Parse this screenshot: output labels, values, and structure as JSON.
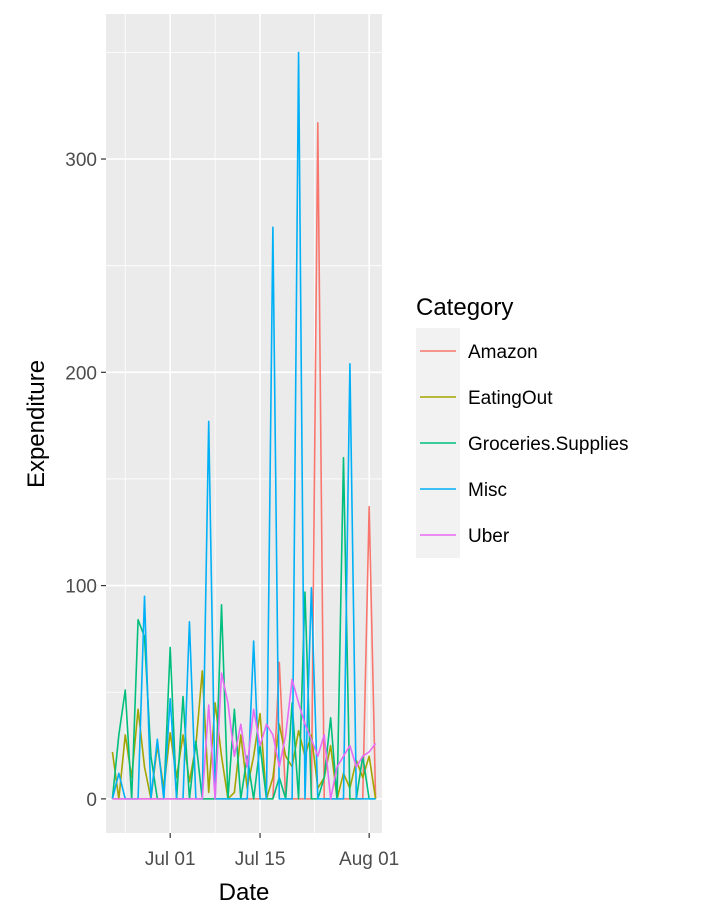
{
  "chart_data": {
    "type": "line",
    "xlabel": "Date",
    "ylabel": "Expenditure",
    "x_ticks": [
      {
        "date": "2017-07-01",
        "label": "Jul 01"
      },
      {
        "date": "2017-07-15",
        "label": "Jul 15"
      },
      {
        "date": "2017-08-01",
        "label": "Aug 01"
      }
    ],
    "y_ticks": [
      0,
      100,
      200,
      300
    ],
    "xlim": [
      "2017-06-21",
      "2017-08-03"
    ],
    "ylim": [
      -16,
      368
    ],
    "grid": true,
    "legend": {
      "title": "Category",
      "position": "right"
    },
    "series": [
      {
        "name": "Amazon",
        "color": "#F8766D",
        "points": [
          [
            "2017-06-22",
            0
          ],
          [
            "2017-06-23",
            0
          ],
          [
            "2017-06-24",
            0
          ],
          [
            "2017-06-25",
            0
          ],
          [
            "2017-06-26",
            0
          ],
          [
            "2017-06-27",
            0
          ],
          [
            "2017-06-28",
            0
          ],
          [
            "2017-06-29",
            0
          ],
          [
            "2017-06-30",
            0
          ],
          [
            "2017-07-01",
            0
          ],
          [
            "2017-07-02",
            0
          ],
          [
            "2017-07-03",
            0
          ],
          [
            "2017-07-04",
            0
          ],
          [
            "2017-07-05",
            0
          ],
          [
            "2017-07-06",
            0
          ],
          [
            "2017-07-07",
            0
          ],
          [
            "2017-07-08",
            0
          ],
          [
            "2017-07-09",
            0
          ],
          [
            "2017-07-10",
            0
          ],
          [
            "2017-07-11",
            0
          ],
          [
            "2017-07-12",
            0
          ],
          [
            "2017-07-13",
            0
          ],
          [
            "2017-07-14",
            0
          ],
          [
            "2017-07-15",
            0
          ],
          [
            "2017-07-16",
            0
          ],
          [
            "2017-07-17",
            0
          ],
          [
            "2017-07-18",
            64
          ],
          [
            "2017-07-19",
            0
          ],
          [
            "2017-07-20",
            0
          ],
          [
            "2017-07-21",
            0
          ],
          [
            "2017-07-22",
            0
          ],
          [
            "2017-07-23",
            0
          ],
          [
            "2017-07-24",
            317
          ],
          [
            "2017-07-25",
            0
          ],
          [
            "2017-07-26",
            0
          ],
          [
            "2017-07-27",
            0
          ],
          [
            "2017-07-28",
            0
          ],
          [
            "2017-07-29",
            0
          ],
          [
            "2017-07-30",
            0
          ],
          [
            "2017-07-31",
            0
          ],
          [
            "2017-08-01",
            137
          ],
          [
            "2017-08-02",
            0
          ]
        ]
      },
      {
        "name": "EatingOut",
        "color": "#A3A500",
        "points": [
          [
            "2017-06-22",
            22
          ],
          [
            "2017-06-23",
            0
          ],
          [
            "2017-06-24",
            30
          ],
          [
            "2017-06-25",
            10
          ],
          [
            "2017-06-26",
            42
          ],
          [
            "2017-06-27",
            15
          ],
          [
            "2017-06-28",
            0
          ],
          [
            "2017-06-29",
            25
          ],
          [
            "2017-06-30",
            5
          ],
          [
            "2017-07-01",
            31
          ],
          [
            "2017-07-02",
            10
          ],
          [
            "2017-07-03",
            30
          ],
          [
            "2017-07-04",
            8
          ],
          [
            "2017-07-05",
            25
          ],
          [
            "2017-07-06",
            60
          ],
          [
            "2017-07-07",
            3
          ],
          [
            "2017-07-08",
            45
          ],
          [
            "2017-07-09",
            20
          ],
          [
            "2017-07-10",
            0
          ],
          [
            "2017-07-11",
            3
          ],
          [
            "2017-07-12",
            30
          ],
          [
            "2017-07-13",
            5
          ],
          [
            "2017-07-14",
            20
          ],
          [
            "2017-07-15",
            40
          ],
          [
            "2017-07-16",
            0
          ],
          [
            "2017-07-17",
            10
          ],
          [
            "2017-07-18",
            35
          ],
          [
            "2017-07-19",
            20
          ],
          [
            "2017-07-20",
            15
          ],
          [
            "2017-07-21",
            32
          ],
          [
            "2017-07-22",
            20
          ],
          [
            "2017-07-23",
            30
          ],
          [
            "2017-07-24",
            5
          ],
          [
            "2017-07-25",
            10
          ],
          [
            "2017-07-26",
            25
          ],
          [
            "2017-07-27",
            0
          ],
          [
            "2017-07-28",
            12
          ],
          [
            "2017-07-29",
            5
          ],
          [
            "2017-07-30",
            18
          ],
          [
            "2017-07-31",
            10
          ],
          [
            "2017-08-01",
            20
          ],
          [
            "2017-08-02",
            0
          ]
        ]
      },
      {
        "name": "Groceries.Supplies",
        "color": "#00BF7D",
        "points": [
          [
            "2017-06-22",
            0
          ],
          [
            "2017-06-23",
            30
          ],
          [
            "2017-06-24",
            51
          ],
          [
            "2017-06-25",
            0
          ],
          [
            "2017-06-26",
            84
          ],
          [
            "2017-06-27",
            76
          ],
          [
            "2017-06-28",
            20
          ],
          [
            "2017-06-29",
            0
          ],
          [
            "2017-06-30",
            0
          ],
          [
            "2017-07-01",
            71
          ],
          [
            "2017-07-02",
            0
          ],
          [
            "2017-07-03",
            48
          ],
          [
            "2017-07-04",
            0
          ],
          [
            "2017-07-05",
            27
          ],
          [
            "2017-07-06",
            0
          ],
          [
            "2017-07-07",
            0
          ],
          [
            "2017-07-08",
            0
          ],
          [
            "2017-07-09",
            91
          ],
          [
            "2017-07-10",
            0
          ],
          [
            "2017-07-11",
            42
          ],
          [
            "2017-07-12",
            0
          ],
          [
            "2017-07-13",
            20
          ],
          [
            "2017-07-14",
            0
          ],
          [
            "2017-07-15",
            25
          ],
          [
            "2017-07-16",
            0
          ],
          [
            "2017-07-17",
            0
          ],
          [
            "2017-07-18",
            10
          ],
          [
            "2017-07-19",
            0
          ],
          [
            "2017-07-20",
            45
          ],
          [
            "2017-07-21",
            0
          ],
          [
            "2017-07-22",
            97
          ],
          [
            "2017-07-23",
            0
          ],
          [
            "2017-07-24",
            0
          ],
          [
            "2017-07-25",
            10
          ],
          [
            "2017-07-26",
            38
          ],
          [
            "2017-07-27",
            0
          ],
          [
            "2017-07-28",
            160
          ],
          [
            "2017-07-29",
            0
          ],
          [
            "2017-07-30",
            0
          ],
          [
            "2017-07-31",
            20
          ],
          [
            "2017-08-01",
            0
          ],
          [
            "2017-08-02",
            0
          ]
        ]
      },
      {
        "name": "Misc",
        "color": "#00B0F6",
        "points": [
          [
            "2017-06-22",
            0
          ],
          [
            "2017-06-23",
            12
          ],
          [
            "2017-06-24",
            0
          ],
          [
            "2017-06-25",
            0
          ],
          [
            "2017-06-26",
            0
          ],
          [
            "2017-06-27",
            95
          ],
          [
            "2017-06-28",
            0
          ],
          [
            "2017-06-29",
            28
          ],
          [
            "2017-06-30",
            0
          ],
          [
            "2017-07-01",
            47
          ],
          [
            "2017-07-02",
            0
          ],
          [
            "2017-07-03",
            0
          ],
          [
            "2017-07-04",
            83
          ],
          [
            "2017-07-05",
            0
          ],
          [
            "2017-07-06",
            0
          ],
          [
            "2017-07-07",
            177
          ],
          [
            "2017-07-08",
            0
          ],
          [
            "2017-07-09",
            0
          ],
          [
            "2017-07-10",
            0
          ],
          [
            "2017-07-11",
            0
          ],
          [
            "2017-07-12",
            0
          ],
          [
            "2017-07-13",
            0
          ],
          [
            "2017-07-14",
            74
          ],
          [
            "2017-07-15",
            0
          ],
          [
            "2017-07-16",
            0
          ],
          [
            "2017-07-17",
            268
          ],
          [
            "2017-07-18",
            0
          ],
          [
            "2017-07-19",
            0
          ],
          [
            "2017-07-20",
            0
          ],
          [
            "2017-07-21",
            350
          ],
          [
            "2017-07-22",
            0
          ],
          [
            "2017-07-23",
            99
          ],
          [
            "2017-07-24",
            0
          ],
          [
            "2017-07-25",
            0
          ],
          [
            "2017-07-26",
            0
          ],
          [
            "2017-07-27",
            0
          ],
          [
            "2017-07-28",
            0
          ],
          [
            "2017-07-29",
            204
          ],
          [
            "2017-07-30",
            0
          ],
          [
            "2017-07-31",
            0
          ],
          [
            "2017-08-01",
            0
          ],
          [
            "2017-08-02",
            0
          ]
        ]
      },
      {
        "name": "Uber",
        "color": "#E76BF3",
        "points": [
          [
            "2017-06-22",
            0
          ],
          [
            "2017-06-23",
            0
          ],
          [
            "2017-06-24",
            0
          ],
          [
            "2017-06-25",
            0
          ],
          [
            "2017-06-26",
            0
          ],
          [
            "2017-06-27",
            0
          ],
          [
            "2017-06-28",
            0
          ],
          [
            "2017-06-29",
            0
          ],
          [
            "2017-06-30",
            0
          ],
          [
            "2017-07-01",
            0
          ],
          [
            "2017-07-02",
            0
          ],
          [
            "2017-07-03",
            0
          ],
          [
            "2017-07-04",
            0
          ],
          [
            "2017-07-05",
            0
          ],
          [
            "2017-07-06",
            0
          ],
          [
            "2017-07-07",
            44
          ],
          [
            "2017-07-08",
            0
          ],
          [
            "2017-07-09",
            59
          ],
          [
            "2017-07-10",
            45
          ],
          [
            "2017-07-11",
            20
          ],
          [
            "2017-07-12",
            35
          ],
          [
            "2017-07-13",
            15
          ],
          [
            "2017-07-14",
            42
          ],
          [
            "2017-07-15",
            25
          ],
          [
            "2017-07-16",
            35
          ],
          [
            "2017-07-17",
            30
          ],
          [
            "2017-07-18",
            15
          ],
          [
            "2017-07-19",
            30
          ],
          [
            "2017-07-20",
            56
          ],
          [
            "2017-07-21",
            45
          ],
          [
            "2017-07-22",
            35
          ],
          [
            "2017-07-23",
            28
          ],
          [
            "2017-07-24",
            20
          ],
          [
            "2017-07-25",
            30
          ],
          [
            "2017-07-26",
            0
          ],
          [
            "2017-07-27",
            15
          ],
          [
            "2017-07-28",
            20
          ],
          [
            "2017-07-29",
            25
          ],
          [
            "2017-07-30",
            15
          ],
          [
            "2017-07-31",
            20
          ],
          [
            "2017-08-01",
            22
          ],
          [
            "2017-08-02",
            26
          ]
        ]
      }
    ]
  }
}
